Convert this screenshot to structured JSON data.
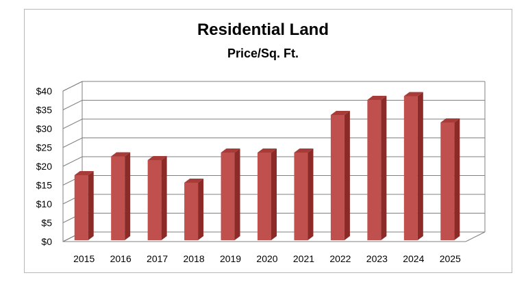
{
  "chart_data": {
    "type": "bar",
    "title": "Residential Land",
    "subtitle": "Price/Sq. Ft.",
    "categories": [
      "2015",
      "2016",
      "2017",
      "2018",
      "2019",
      "2020",
      "2021",
      "2022",
      "2023",
      "2024",
      "2025"
    ],
    "values": [
      18,
      23,
      22,
      16,
      24,
      24,
      24,
      34,
      38,
      39,
      32
    ],
    "ylim": [
      0,
      40
    ],
    "yticks": [
      "$0",
      "$5",
      "$10",
      "$15",
      "$20",
      "$25",
      "$30",
      "$35",
      "$40"
    ],
    "grid": true,
    "legend": "none",
    "colors": {
      "bar_front": "#c0504d",
      "bar_side": "#8b2a27",
      "bar_top": "#a63b38",
      "grid": "#7f7f7f"
    }
  }
}
